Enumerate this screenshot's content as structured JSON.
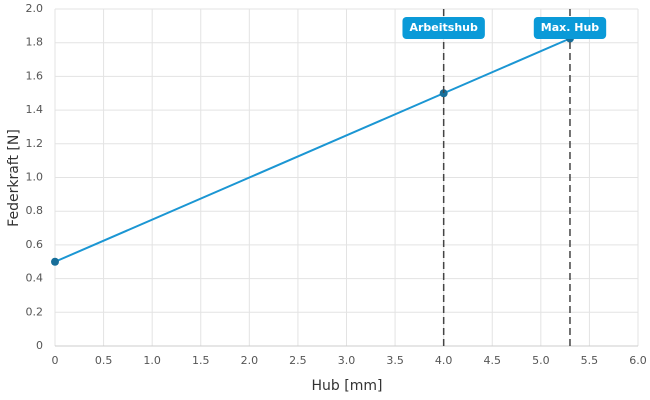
{
  "chart_data": {
    "type": "line",
    "x_label": "Hub [mm]",
    "y_label": "Federkraft [N]",
    "x": [
      0,
      4,
      5.3
    ],
    "series": [
      {
        "color": "#1b96d3",
        "values": [
          0.5,
          1.5,
          1.825
        ]
      }
    ],
    "annotations": [
      {
        "x": 4,
        "label": "Arbeitshub"
      },
      {
        "x": 5.3,
        "label": "Max. Hub"
      }
    ],
    "xlim": [
      0,
      6
    ],
    "ylim": [
      0,
      2
    ],
    "xticks": [
      0,
      0.5,
      {
        "value": 1,
        "label": "1.0"
      },
      1.5,
      {
        "value": 2,
        "label": "2.0"
      },
      2.5,
      {
        "value": 3,
        "label": "3.0"
      },
      3.5,
      {
        "value": 4,
        "label": "4.0"
      },
      4.5,
      {
        "value": 5,
        "label": "5.0"
      },
      5.5,
      {
        "value": 6,
        "label": "6.0"
      }
    ],
    "yticks": [
      0,
      0.2,
      0.4,
      0.6,
      0.8,
      {
        "value": 1,
        "label": "1.0"
      },
      1.2,
      1.4,
      1.6,
      1.8,
      {
        "value": 2,
        "label": "2.0"
      }
    ],
    "grid": true
  }
}
